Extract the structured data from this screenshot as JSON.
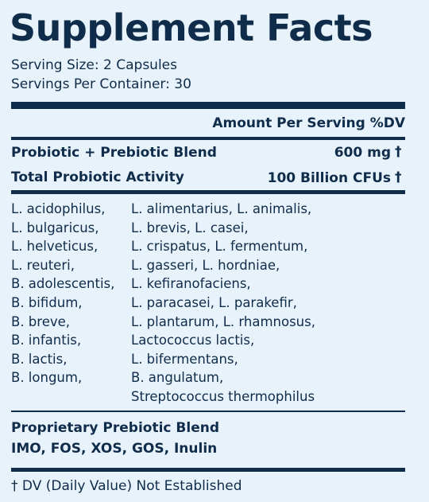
{
  "title": "Supplement Facts",
  "serving_size": "Serving Size: 2 Capsules",
  "servings_per_container": "Servings Per Container: 30",
  "column_header": "Amount Per Serving %DV",
  "rows": [
    {
      "name": "Probiotic + Prebiotic Blend",
      "amount": "600 mg",
      "dv": "†"
    },
    {
      "name": "Total Probiotic Activity",
      "amount": "100 Billion CFUs",
      "dv": "†"
    }
  ],
  "ingredients_left": [
    "L. acidophilus,",
    "L. bulgaricus,",
    "L. helveticus,",
    "L. reuteri,",
    "B. adolescentis,",
    "B. bifidum,",
    "B. breve,",
    "B. infantis,",
    "B. lactis,",
    "B. longum,"
  ],
  "ingredients_right": [
    "L. alimentarius, L. animalis,",
    "L. brevis, L. casei,",
    "L. crispatus, L. fermentum,",
    "L. gasseri, L. hordniae,",
    "L. kefiranofaciens,",
    "L. paracasei, L. parakefir,",
    "L. plantarum, L. rhamnosus,",
    "Lactococcus lactis,",
    "L. bifermentans,",
    "B. angulatum,",
    "Streptococcus thermophilus"
  ],
  "blend": {
    "title": "Proprietary Prebiotic Blend",
    "contents": "IMO, FOS, XOS, GOS, Inulin"
  },
  "footnote": "† DV (Daily Value) Not Established"
}
